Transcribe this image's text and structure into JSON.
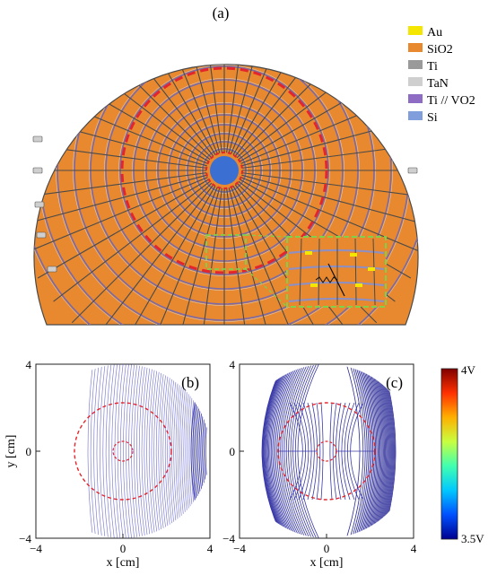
{
  "panel_a": {
    "label": "(a)",
    "legend": [
      {
        "name": "Au",
        "color": "#f5e600"
      },
      {
        "name": "SiO2",
        "color": "#e8892f"
      },
      {
        "name": "Ti",
        "color": "#9a9a9a"
      },
      {
        "name": "TaN",
        "color": "#cfcfcf"
      },
      {
        "name": "Ti // VO2",
        "color": "#8f6cc4"
      },
      {
        "name": "Si",
        "color": "#7f9edb"
      }
    ],
    "colors": {
      "wafer": "#e8892f",
      "line": "#7a6aa8",
      "center": "#3b6fd1",
      "dash_red": "#e3262b",
      "dash_green": "#7fd14a"
    }
  },
  "chart_data": [
    {
      "type": "contour",
      "label": "(b)",
      "xlabel": "x [cm]",
      "ylabel": "y [cm]",
      "xlim": [
        -4,
        4
      ],
      "ylim": [
        -4,
        4
      ],
      "xticks": [
        "−4",
        "0",
        "4"
      ],
      "yticks": [
        "4",
        "0",
        "−4"
      ]
    },
    {
      "type": "contour",
      "label": "(c)",
      "xlabel": "x [cm]",
      "xlim": [
        -4,
        4
      ],
      "ylim": [
        -4,
        4
      ],
      "xticks": [
        "−4",
        "0",
        "4"
      ],
      "yticks": [
        "4",
        "0",
        "−4"
      ]
    }
  ],
  "colorbar": {
    "max_label": "4V",
    "min_label": "3.5V",
    "stops": [
      "#00008f",
      "#0050ff",
      "#00c8ff",
      "#40ffb0",
      "#c8ff40",
      "#ffb000",
      "#ff3000",
      "#800000"
    ]
  }
}
